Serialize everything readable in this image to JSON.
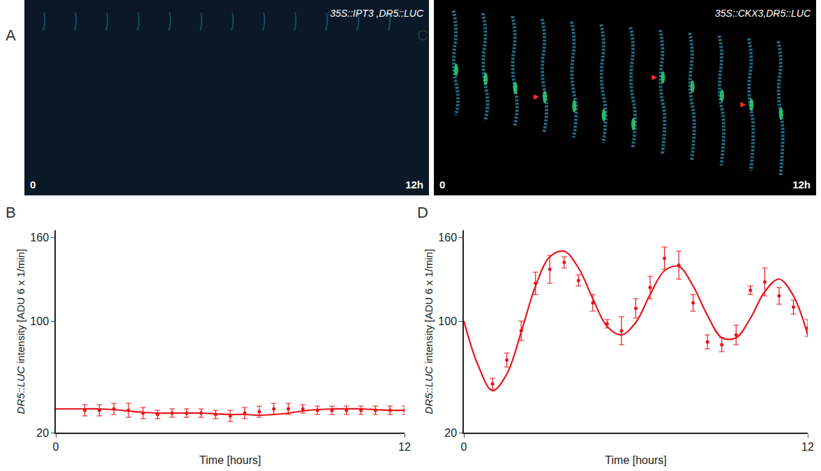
{
  "images": [
    {
      "letter": "A",
      "label": "35S::IPT3 ,DR5::LUC",
      "start": "0",
      "end": "12h"
    },
    {
      "letter": "C",
      "label": "35S::CKX3,DR5::LUC",
      "start": "0",
      "end": "12h"
    }
  ],
  "chart_data": [
    {
      "letter": "B",
      "type": "line",
      "x_label": "Time [hours]",
      "y_label": "DR5::LUC intensity [ADU 6 x 1/min]",
      "xlim": [
        0,
        12
      ],
      "xticks": [
        0,
        12
      ],
      "ylim": [
        20,
        165
      ],
      "yticks": [
        20,
        100,
        160
      ],
      "grid": false,
      "color": "#e8141b",
      "series": [
        {
          "type": "scatter",
          "marker": "circle",
          "x": [
            1,
            1.5,
            2,
            2.5,
            3,
            3.5,
            4,
            4.5,
            5,
            5.5,
            6,
            6.5,
            7,
            7.5,
            8,
            8.5,
            9,
            9.5,
            10,
            10.5,
            11,
            11.5,
            12
          ],
          "values": [
            36,
            36,
            37,
            36,
            34,
            33,
            34,
            34,
            34,
            33,
            32,
            34,
            35,
            37,
            37,
            37,
            36,
            36,
            36,
            36,
            36,
            36,
            36
          ],
          "errors": [
            4,
            4,
            4,
            5,
            4,
            3,
            3,
            3,
            3,
            3,
            4,
            4,
            4,
            4,
            4,
            3,
            3,
            3,
            3,
            3,
            3,
            3,
            3
          ]
        },
        {
          "type": "line",
          "line_style": "solid",
          "x": [
            0,
            0.5,
            1,
            1.5,
            2,
            2.5,
            3,
            3.5,
            4,
            4.5,
            5,
            5.5,
            6,
            6.5,
            7,
            7.5,
            8,
            8.5,
            9,
            9.5,
            10,
            10.5,
            11,
            11.5,
            12
          ],
          "values": [
            37,
            37,
            37,
            37,
            36.5,
            35.5,
            34.5,
            34,
            34,
            34,
            34,
            33.5,
            33,
            33,
            32.5,
            33,
            34,
            35.5,
            36.5,
            37,
            37,
            37,
            36.5,
            36,
            36
          ]
        }
      ]
    },
    {
      "letter": "D",
      "type": "line",
      "x_label": "Time [hours]",
      "y_label": "DR5::LUC intensity [ADU 6 x 1/min]",
      "xlim": [
        0,
        12
      ],
      "xticks": [
        0,
        12
      ],
      "ylim": [
        20,
        165
      ],
      "yticks": [
        20,
        100,
        160
      ],
      "grid": false,
      "color": "#e8141b",
      "series": [
        {
          "type": "scatter",
          "marker": "circle",
          "x": [
            1,
            1.5,
            2,
            2.5,
            3,
            3.5,
            4,
            4.5,
            5,
            5.5,
            6,
            6.5,
            7,
            7.5,
            8,
            8.5,
            9,
            9.5,
            10,
            10.5,
            11,
            11.5,
            12
          ],
          "values": [
            55,
            72,
            93,
            127,
            137,
            142,
            129,
            113,
            98,
            93,
            109,
            124,
            145,
            140,
            113,
            85,
            83,
            90,
            122,
            128,
            118,
            110,
            95
          ],
          "errors": [
            4,
            5,
            7,
            8,
            10,
            4,
            4,
            6,
            3,
            10,
            7,
            8,
            8,
            10,
            6,
            5,
            5,
            7,
            3,
            10,
            6,
            5,
            6
          ]
        },
        {
          "type": "line",
          "line_style": "solid",
          "x": [
            0,
            0.5,
            1,
            1.5,
            2,
            2.5,
            3,
            3.5,
            4,
            4.5,
            5,
            5.5,
            6,
            6.5,
            7,
            7.5,
            8,
            8.5,
            9,
            9.5,
            10,
            10.5,
            11,
            11.5,
            12
          ],
          "values": [
            100,
            68,
            50,
            62,
            92,
            125,
            146,
            150,
            138,
            116,
            96,
            90,
            99,
            119,
            136,
            139,
            125,
            104,
            88,
            88,
            102,
            121,
            130,
            118,
            90
          ]
        }
      ]
    }
  ]
}
